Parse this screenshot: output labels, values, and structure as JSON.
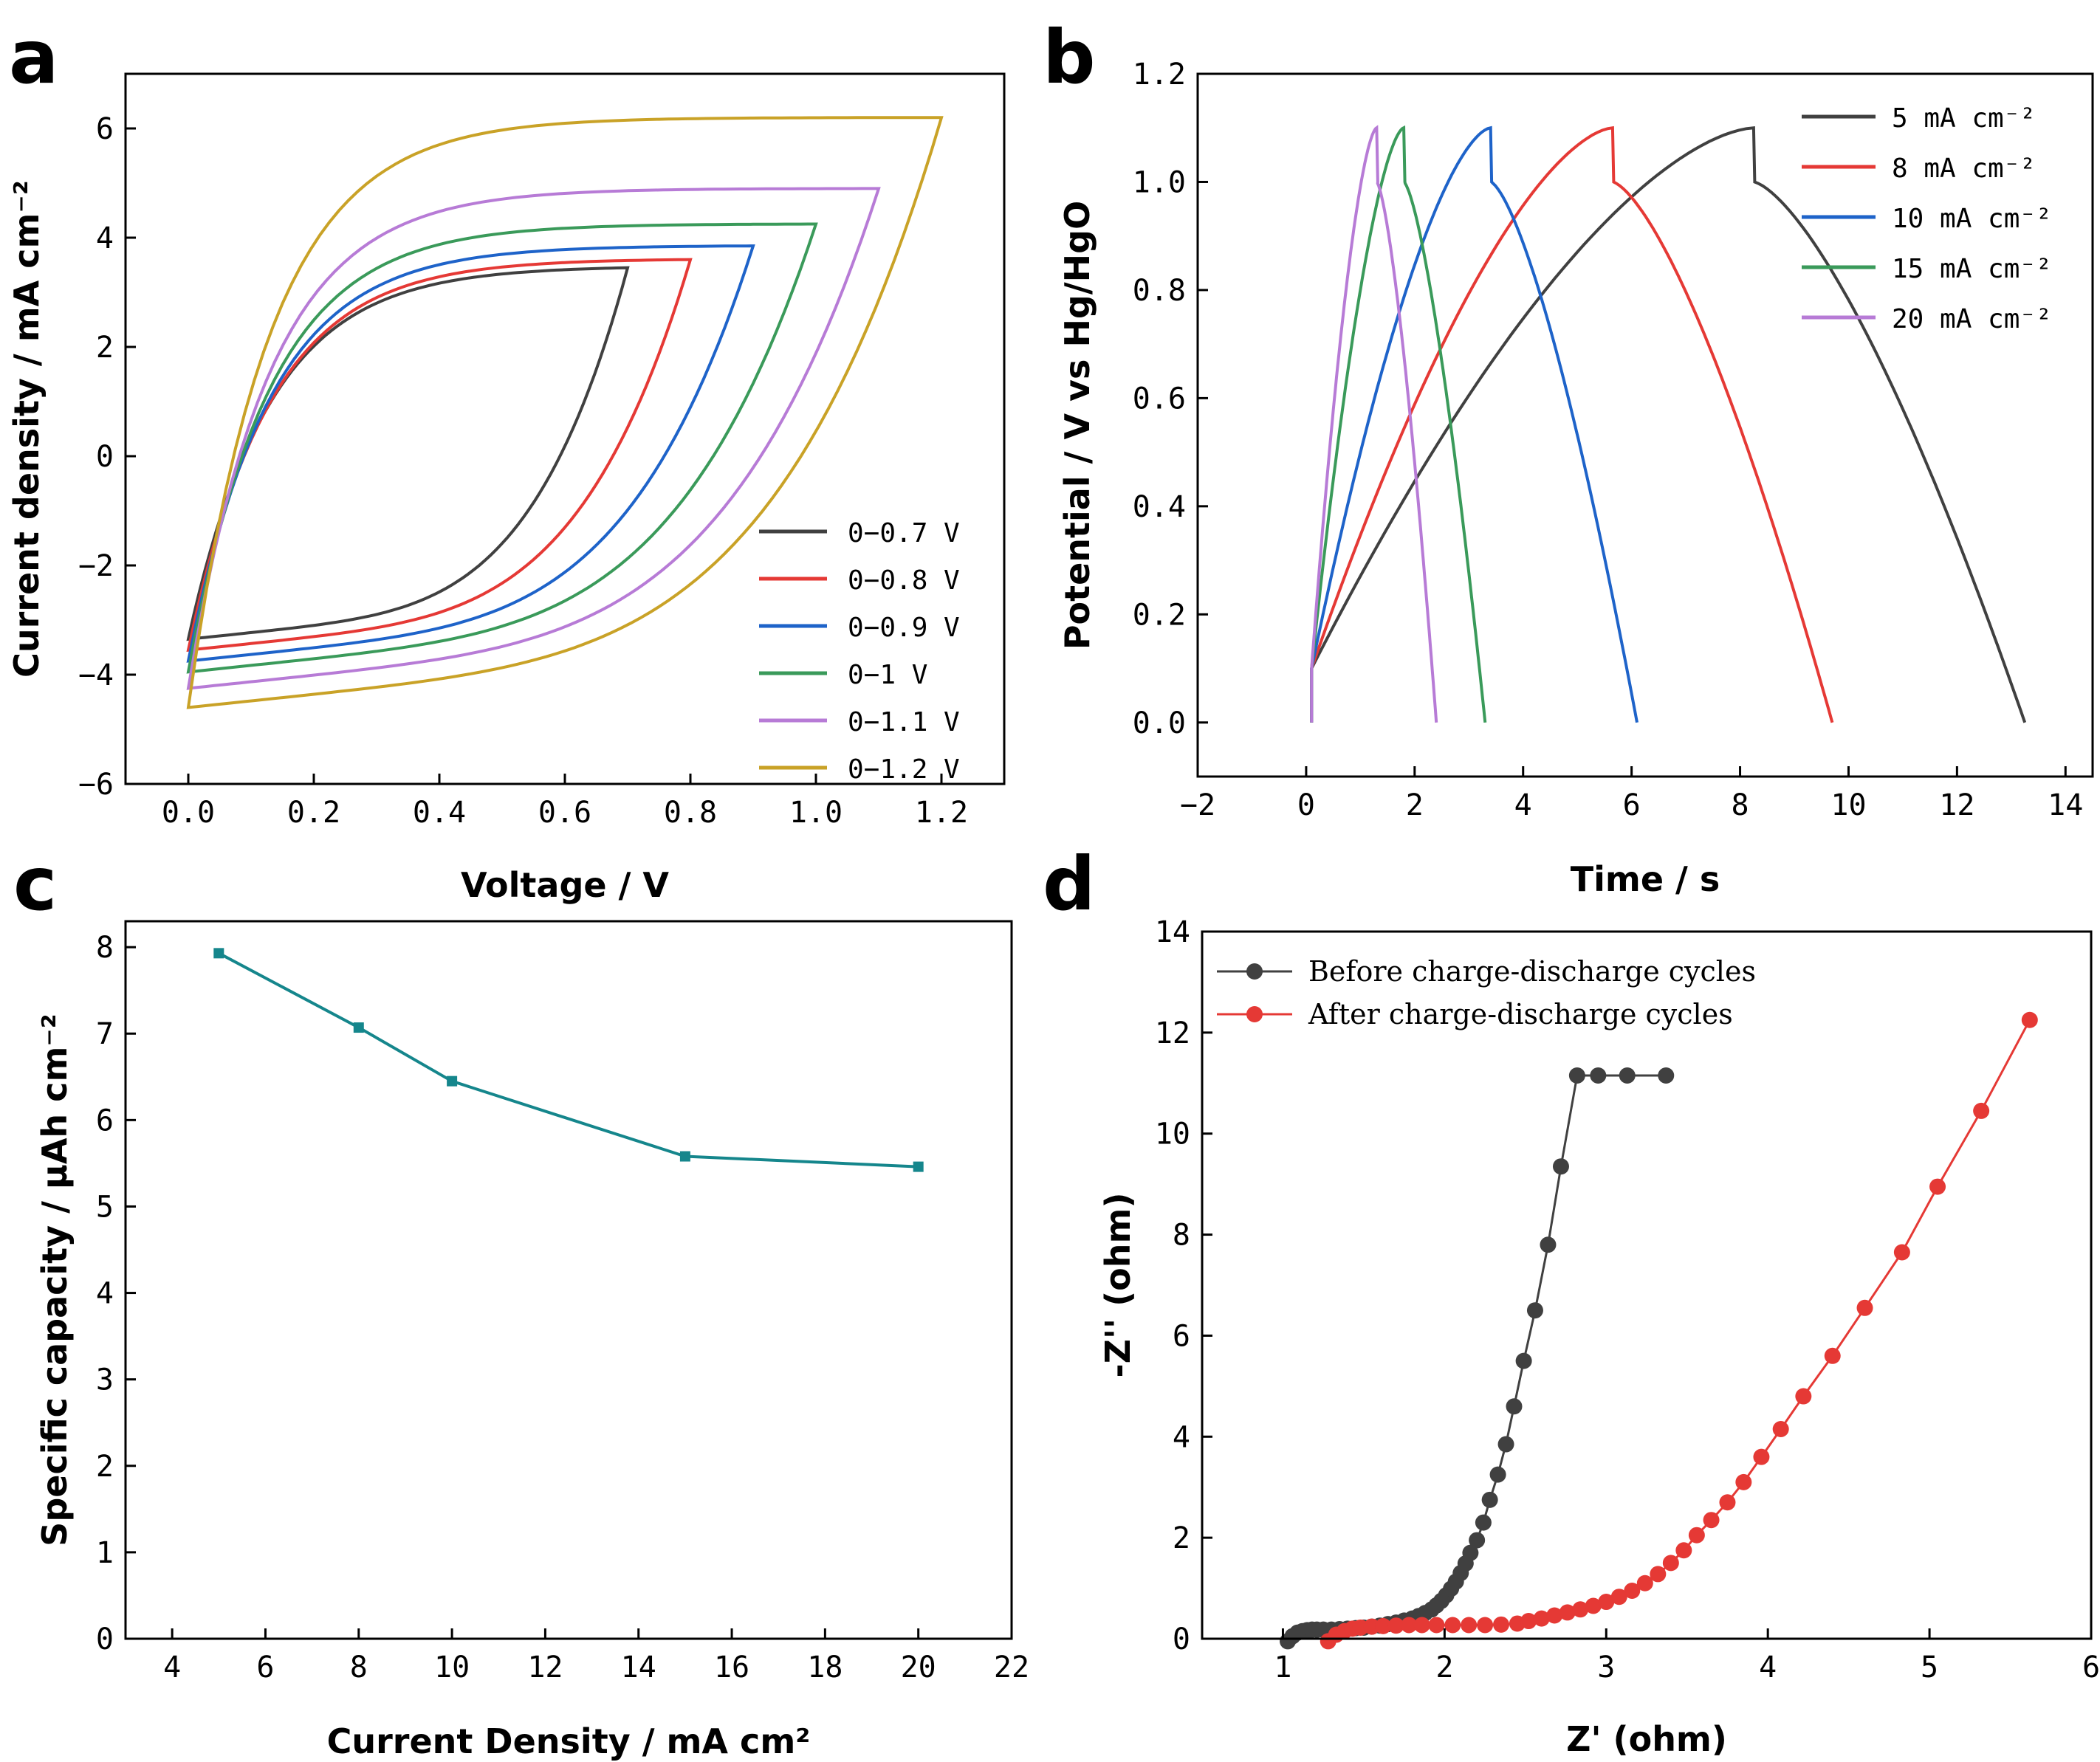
{
  "chart_data": [
    {
      "panel": "a",
      "type": "line",
      "xlabel": "Voltage / V",
      "ylabel": "Current density / mA cm⁻²",
      "xlim": [
        -0.1,
        1.3
      ],
      "ylim": [
        -6,
        7
      ],
      "xticks": [
        "0.0",
        "0.2",
        "0.4",
        "0.6",
        "0.8",
        "1.0",
        "1.2"
      ],
      "yticks": [
        "−6",
        "−4",
        "−2",
        "0",
        "2",
        "4",
        "6"
      ],
      "legend_position": "bottom-right",
      "series": [
        {
          "name": "0−0.7 V",
          "color": "#404040",
          "x_max": 0.7,
          "i_top": 3.45,
          "i_bottom": -3.35
        },
        {
          "name": "0−0.8 V",
          "color": "#e53935",
          "x_max": 0.8,
          "i_top": 3.6,
          "i_bottom": -3.55
        },
        {
          "name": "0−0.9 V",
          "color": "#1e63c9",
          "x_max": 0.9,
          "i_top": 3.85,
          "i_bottom": -3.75
        },
        {
          "name": "0−1 V",
          "color": "#3a9a5a",
          "x_max": 1.0,
          "i_top": 4.25,
          "i_bottom": -3.95
        },
        {
          "name": "0−1.1 V",
          "color": "#b77bd6",
          "x_max": 1.1,
          "i_top": 4.9,
          "i_bottom": -4.25
        },
        {
          "name": "0−1.2 V",
          "color": "#c9a227",
          "x_max": 1.2,
          "i_top": 6.2,
          "i_bottom": -4.6
        }
      ]
    },
    {
      "panel": "b",
      "type": "line",
      "xlabel": "Time / s",
      "ylabel": "Potential / V vs Hg/HgO",
      "xlim": [
        -2,
        14.5
      ],
      "ylim": [
        -0.1,
        1.2
      ],
      "xticks": [
        "−2",
        "0",
        "2",
        "4",
        "6",
        "8",
        "10",
        "12",
        "14"
      ],
      "yticks": [
        "0.0",
        "0.2",
        "0.4",
        "0.6",
        "0.8",
        "1.0",
        "1.2"
      ],
      "legend_position": "top-right",
      "series": [
        {
          "name": "5 mA cm⁻²",
          "color": "#404040",
          "t_peak": 8.25,
          "t_end": 13.25
        },
        {
          "name": "8 mA cm⁻²",
          "color": "#e53935",
          "t_peak": 5.65,
          "t_end": 9.7
        },
        {
          "name": "10 mA cm⁻²",
          "color": "#1e63c9",
          "t_peak": 3.4,
          "t_end": 6.1
        },
        {
          "name": "15 mA cm⁻²",
          "color": "#3a9a5a",
          "t_peak": 1.8,
          "t_end": 3.3
        },
        {
          "name": "20 mA cm⁻²",
          "color": "#b77bd6",
          "t_peak": 1.3,
          "t_end": 2.4
        }
      ]
    },
    {
      "panel": "c",
      "type": "line",
      "xlabel": "Current Density / mA cm²",
      "ylabel": "Specific capacity / µAh cm⁻²",
      "xlim": [
        3,
        22
      ],
      "ylim": [
        0,
        8.3
      ],
      "xticks": [
        "4",
        "6",
        "8",
        "10",
        "12",
        "14",
        "16",
        "18",
        "20",
        "22"
      ],
      "yticks": [
        "0",
        "1",
        "2",
        "3",
        "4",
        "5",
        "6",
        "7",
        "8"
      ],
      "series": [
        {
          "name": "Specific capacity",
          "color": "#15868c",
          "x": [
            5,
            8,
            10,
            15,
            20
          ],
          "values": [
            7.93,
            7.07,
            6.45,
            5.58,
            5.46
          ]
        }
      ]
    },
    {
      "panel": "d",
      "type": "scatter",
      "xlabel": "Z' (ohm)",
      "ylabel": "-Z'' (ohm)",
      "xlim": [
        0.5,
        6
      ],
      "ylim": [
        0,
        14
      ],
      "xticks": [
        "1",
        "2",
        "3",
        "4",
        "5",
        "6"
      ],
      "yticks": [
        "0",
        "2",
        "4",
        "6",
        "8",
        "10",
        "12",
        "14"
      ],
      "legend_position": "top-left",
      "series": [
        {
          "name": "Before charge-discharge cycles",
          "color": "#404040",
          "x": [
            1.03,
            1.06,
            1.09,
            1.12,
            1.15,
            1.18,
            1.21,
            1.25,
            1.3,
            1.35,
            1.4,
            1.45,
            1.5,
            1.55,
            1.6,
            1.65,
            1.7,
            1.75,
            1.8,
            1.84,
            1.88,
            1.92,
            1.95,
            1.98,
            2.01,
            2.04,
            2.07,
            2.1,
            2.13,
            2.16,
            2.2,
            2.24,
            2.28,
            2.33,
            2.38,
            2.43,
            2.49,
            2.56,
            2.64,
            2.72,
            2.82,
            2.95,
            3.13,
            3.37
          ],
          "y": [
            -0.05,
            0.05,
            0.12,
            0.15,
            0.17,
            0.18,
            0.18,
            0.18,
            0.18,
            0.19,
            0.2,
            0.21,
            0.22,
            0.24,
            0.26,
            0.29,
            0.32,
            0.36,
            0.4,
            0.45,
            0.51,
            0.58,
            0.66,
            0.75,
            0.86,
            0.99,
            1.13,
            1.3,
            1.49,
            1.7,
            1.95,
            2.3,
            2.75,
            3.25,
            3.85,
            4.6,
            5.5,
            6.5,
            7.8,
            9.35,
            11.15,
            11.15,
            11.15,
            11.15
          ]
        },
        {
          "name": "After charge-discharge cycles",
          "color": "#e53935",
          "x": [
            1.28,
            1.33,
            1.38,
            1.43,
            1.48,
            1.55,
            1.62,
            1.7,
            1.78,
            1.86,
            1.95,
            2.05,
            2.15,
            2.25,
            2.35,
            2.45,
            2.52,
            2.6,
            2.68,
            2.76,
            2.84,
            2.92,
            3.0,
            3.08,
            3.16,
            3.24,
            3.32,
            3.4,
            3.48,
            3.56,
            3.65,
            3.75,
            3.85,
            3.96,
            4.08,
            4.22,
            4.4,
            4.6,
            4.83,
            5.05,
            5.32,
            5.62
          ],
          "y": [
            -0.05,
            0.08,
            0.15,
            0.2,
            0.22,
            0.24,
            0.25,
            0.26,
            0.27,
            0.27,
            0.27,
            0.27,
            0.27,
            0.27,
            0.28,
            0.3,
            0.35,
            0.4,
            0.46,
            0.52,
            0.58,
            0.65,
            0.73,
            0.83,
            0.95,
            1.1,
            1.28,
            1.5,
            1.75,
            2.05,
            2.35,
            2.7,
            3.1,
            3.6,
            4.15,
            4.8,
            5.6,
            6.55,
            7.65,
            8.95,
            10.45,
            12.25
          ]
        }
      ]
    }
  ],
  "panel_labels": {
    "a": "a",
    "b": "b",
    "c": "c",
    "d": "d"
  }
}
